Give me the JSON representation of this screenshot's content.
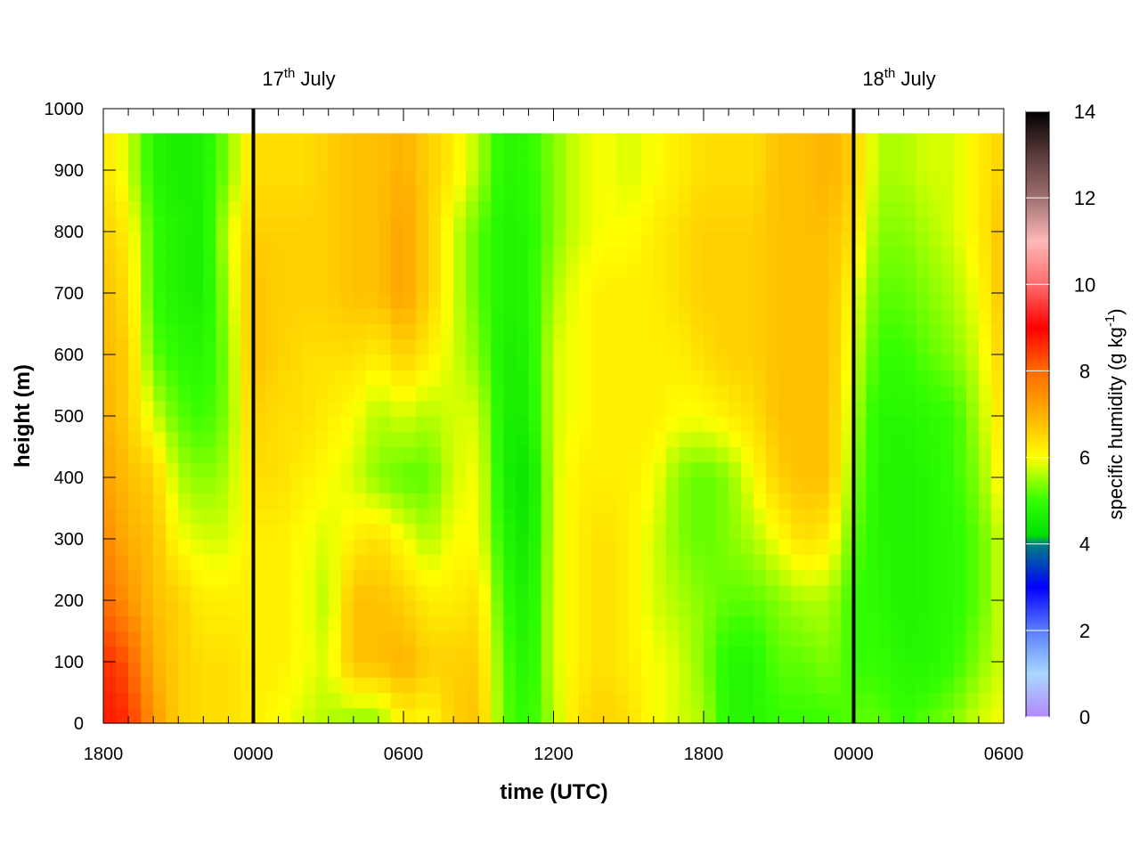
{
  "chart_data": {
    "type": "heatmap",
    "title": "",
    "xlabel": "time (UTC)",
    "ylabel": "height (m)",
    "colorbar_label": "specific humidity (g kg",
    "colorbar_label_sup": "-1",
    "colorbar_label_end": ")",
    "x_unit_hours_per_tick": 6,
    "x_tick_labels": [
      "1800",
      "0000",
      "0600",
      "1200",
      "1800",
      "0000",
      "0600"
    ],
    "x_tick_hours": [
      0,
      6,
      12,
      18,
      24,
      30,
      36
    ],
    "xlim_hours": [
      0,
      36
    ],
    "ylim": [
      0,
      1000
    ],
    "y_ticks": [
      0,
      100,
      200,
      300,
      400,
      500,
      600,
      700,
      800,
      900,
      1000
    ],
    "data_top_height": 960,
    "colorbar_ticks": [
      0,
      2,
      4,
      6,
      8,
      10,
      12,
      14
    ],
    "zlim": [
      0,
      14
    ],
    "colormap_stops": [
      {
        "value": 0,
        "color": "#b388ff"
      },
      {
        "value": 1,
        "color": "#a8d8ff"
      },
      {
        "value": 2,
        "color": "#5a7dff"
      },
      {
        "value": 3,
        "color": "#0000ff"
      },
      {
        "value": 4,
        "color": "#008080"
      },
      {
        "value": 4.2,
        "color": "#00e000"
      },
      {
        "value": 5,
        "color": "#33ff00"
      },
      {
        "value": 6,
        "color": "#ffff00"
      },
      {
        "value": 7,
        "color": "#ffb000"
      },
      {
        "value": 8,
        "color": "#ff6a00"
      },
      {
        "value": 9,
        "color": "#ff0000"
      },
      {
        "value": 10,
        "color": "#ff6b6b"
      },
      {
        "value": 11,
        "color": "#ffb8b8"
      },
      {
        "value": 12,
        "color": "#a07070"
      },
      {
        "value": 13,
        "color": "#5a3a3a"
      },
      {
        "value": 14,
        "color": "#000000"
      }
    ],
    "annotations": [
      {
        "label_main": "17",
        "label_sup": "th",
        "label_rest": " July",
        "x_hours": 6
      },
      {
        "label_main": "18",
        "label_sup": "th",
        "label_rest": " July",
        "x_hours": 30
      }
    ],
    "heights": [
      0,
      100,
      200,
      300,
      400,
      500,
      600,
      700,
      800,
      900,
      960
    ],
    "columns": [
      {
        "t": 0.0,
        "q": [
          8.8,
          8.6,
          8.0,
          7.6,
          7.2,
          7.0,
          6.9,
          6.8,
          6.6,
          6.3,
          6.3
        ]
      },
      {
        "t": 1.0,
        "q": [
          8.6,
          8.2,
          7.4,
          7.0,
          6.8,
          6.6,
          6.6,
          6.4,
          6.2,
          5.8,
          5.8
        ]
      },
      {
        "t": 2.0,
        "q": [
          7.4,
          7.0,
          6.8,
          6.8,
          6.6,
          5.8,
          5.2,
          5.0,
          5.0,
          4.8,
          4.8
        ]
      },
      {
        "t": 3.0,
        "q": [
          6.6,
          6.6,
          6.6,
          6.0,
          5.6,
          5.2,
          4.9,
          4.7,
          4.7,
          4.6,
          4.6
        ]
      },
      {
        "t": 4.0,
        "q": [
          6.4,
          6.4,
          6.2,
          5.8,
          5.4,
          5.0,
          4.8,
          4.6,
          4.6,
          4.7,
          4.7
        ]
      },
      {
        "t": 5.0,
        "q": [
          6.4,
          6.4,
          6.2,
          5.8,
          5.6,
          5.4,
          5.4,
          5.6,
          5.8,
          5.4,
          5.4
        ]
      },
      {
        "t": 6.0,
        "q": [
          6.2,
          6.2,
          6.2,
          6.2,
          6.4,
          6.6,
          6.8,
          6.8,
          6.6,
          6.4,
          6.4
        ]
      },
      {
        "t": 7.0,
        "q": [
          6.0,
          6.2,
          6.2,
          6.2,
          6.4,
          6.4,
          6.6,
          6.6,
          6.6,
          6.4,
          6.4
        ]
      },
      {
        "t": 8.0,
        "q": [
          5.8,
          6.0,
          6.0,
          6.0,
          6.2,
          6.4,
          6.4,
          6.6,
          6.6,
          6.4,
          6.4
        ]
      },
      {
        "t": 9.0,
        "q": [
          5.6,
          5.8,
          5.6,
          5.8,
          6.0,
          6.2,
          6.4,
          6.6,
          6.6,
          6.6,
          6.6
        ]
      },
      {
        "t": 10.0,
        "q": [
          5.4,
          6.8,
          6.8,
          6.2,
          5.8,
          6.0,
          6.4,
          6.8,
          6.8,
          6.8,
          6.8
        ]
      },
      {
        "t": 11.0,
        "q": [
          5.4,
          6.8,
          6.8,
          6.4,
          5.4,
          5.6,
          6.2,
          6.8,
          6.8,
          6.8,
          6.8
        ]
      },
      {
        "t": 12.0,
        "q": [
          6.2,
          7.0,
          6.6,
          6.0,
          5.2,
          5.8,
          6.6,
          7.2,
          7.2,
          7.0,
          7.0
        ]
      },
      {
        "t": 13.0,
        "q": [
          6.0,
          6.6,
          6.2,
          5.6,
          5.2,
          5.6,
          6.2,
          6.6,
          6.6,
          6.6,
          6.6
        ]
      },
      {
        "t": 14.0,
        "q": [
          6.6,
          6.6,
          6.2,
          6.0,
          5.8,
          5.8,
          5.8,
          5.8,
          5.8,
          6.2,
          6.2
        ]
      },
      {
        "t": 15.0,
        "q": [
          6.8,
          6.6,
          6.4,
          6.0,
          6.0,
          5.8,
          5.4,
          5.2,
          5.2,
          5.6,
          5.6
        ]
      },
      {
        "t": 16.0,
        "q": [
          5.2,
          5.2,
          5.0,
          4.8,
          4.6,
          4.6,
          4.6,
          4.7,
          4.7,
          4.8,
          4.8
        ]
      },
      {
        "t": 17.0,
        "q": [
          4.9,
          4.7,
          4.6,
          4.4,
          4.3,
          4.6,
          4.7,
          4.8,
          4.8,
          4.9,
          4.9
        ]
      },
      {
        "t": 18.0,
        "q": [
          5.6,
          5.8,
          5.8,
          5.8,
          5.8,
          5.8,
          5.8,
          5.6,
          5.4,
          5.4,
          5.4
        ]
      },
      {
        "t": 19.0,
        "q": [
          6.4,
          6.2,
          6.2,
          6.2,
          6.2,
          6.0,
          6.0,
          6.0,
          5.8,
          5.8,
          5.8
        ]
      },
      {
        "t": 20.0,
        "q": [
          6.6,
          6.4,
          6.4,
          6.4,
          6.2,
          6.2,
          6.2,
          6.2,
          6.0,
          6.0,
          6.0
        ]
      },
      {
        "t": 21.0,
        "q": [
          6.4,
          6.2,
          6.2,
          6.2,
          6.2,
          6.2,
          6.2,
          6.2,
          6.0,
          5.8,
          5.8
        ]
      },
      {
        "t": 22.0,
        "q": [
          6.0,
          6.0,
          5.8,
          5.8,
          6.0,
          6.2,
          6.2,
          6.2,
          6.2,
          6.0,
          6.0
        ]
      },
      {
        "t": 23.0,
        "q": [
          5.8,
          5.8,
          5.6,
          5.4,
          5.4,
          6.0,
          6.2,
          6.4,
          6.4,
          6.2,
          6.2
        ]
      },
      {
        "t": 24.0,
        "q": [
          5.6,
          5.4,
          5.4,
          5.2,
          5.2,
          6.0,
          6.4,
          6.6,
          6.6,
          6.4,
          6.4
        ]
      },
      {
        "t": 25.0,
        "q": [
          4.8,
          4.8,
          5.2,
          5.4,
          5.4,
          6.2,
          6.6,
          6.6,
          6.6,
          6.4,
          6.4
        ]
      },
      {
        "t": 26.0,
        "q": [
          4.8,
          4.8,
          5.2,
          5.6,
          6.0,
          6.4,
          6.6,
          6.6,
          6.6,
          6.4,
          6.4
        ]
      },
      {
        "t": 27.0,
        "q": [
          5.0,
          5.2,
          5.4,
          6.0,
          6.6,
          6.8,
          6.8,
          6.8,
          6.8,
          6.8,
          6.8
        ]
      },
      {
        "t": 28.0,
        "q": [
          5.0,
          5.2,
          5.6,
          6.4,
          6.8,
          6.8,
          6.8,
          6.8,
          6.8,
          6.8,
          6.8
        ]
      },
      {
        "t": 29.0,
        "q": [
          5.0,
          5.4,
          5.6,
          6.2,
          6.8,
          6.8,
          6.8,
          6.8,
          6.8,
          7.0,
          7.0
        ]
      },
      {
        "t": 30.0,
        "q": [
          5.2,
          5.0,
          5.0,
          5.2,
          5.4,
          5.6,
          5.8,
          6.0,
          6.4,
          6.6,
          6.6
        ]
      },
      {
        "t": 31.0,
        "q": [
          5.2,
          5.0,
          4.9,
          4.8,
          4.8,
          4.8,
          5.0,
          5.2,
          5.4,
          5.6,
          5.6
        ]
      },
      {
        "t": 32.0,
        "q": [
          5.0,
          4.8,
          4.7,
          4.7,
          4.7,
          4.8,
          5.0,
          5.2,
          5.4,
          5.6,
          5.6
        ]
      },
      {
        "t": 33.0,
        "q": [
          5.2,
          4.8,
          4.8,
          4.8,
          4.8,
          4.9,
          5.2,
          5.4,
          5.6,
          5.8,
          5.8
        ]
      },
      {
        "t": 34.0,
        "q": [
          5.4,
          5.0,
          4.9,
          4.9,
          5.0,
          5.0,
          5.4,
          5.6,
          5.8,
          5.8,
          5.8
        ]
      },
      {
        "t": 35.0,
        "q": [
          5.8,
          5.4,
          5.2,
          5.2,
          5.4,
          5.6,
          5.8,
          6.0,
          6.2,
          6.2,
          6.2
        ]
      },
      {
        "t": 36.0,
        "q": [
          6.0,
          5.8,
          5.8,
          5.8,
          6.2,
          6.4,
          6.6,
          6.8,
          6.8,
          6.6,
          6.6
        ]
      }
    ]
  }
}
